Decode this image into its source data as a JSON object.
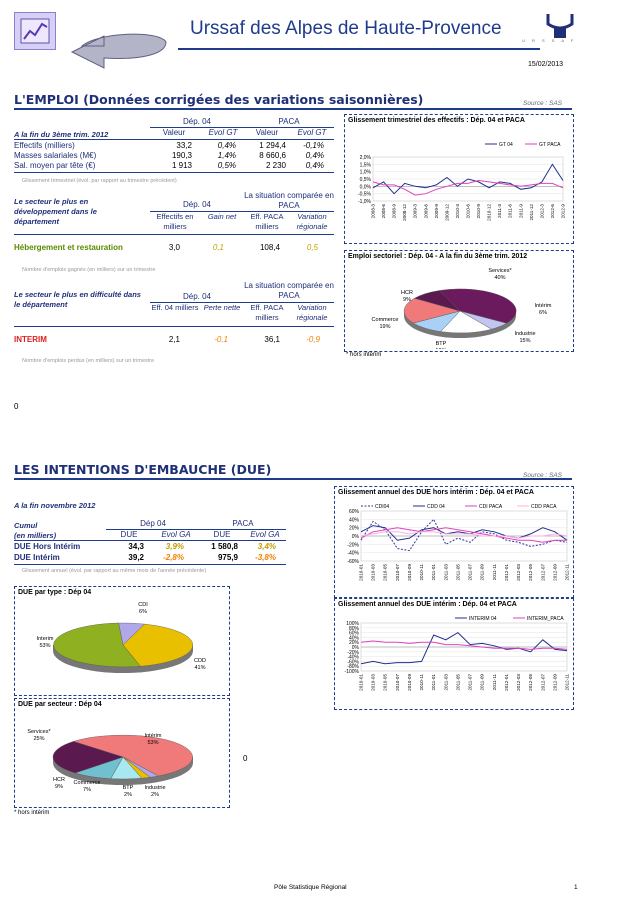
{
  "header": {
    "title": "Urssaf des Alpes de Haute-Provence",
    "date": "15/02/2013",
    "logo_text": "U R S S A F",
    "logo_icon": "urssaf-logo-icon",
    "chart_icon": "chart-clipboard-icon",
    "arrow_icon": "back-arrow-icon"
  },
  "emploi": {
    "title": "L'EMPLOI (Données corrigées des variations saisonnières)",
    "source": "Source : SAS",
    "table": {
      "dep_label": "Dép. 04",
      "paca_label": "PACA",
      "period_label": "A la fin du 3ème trim. 2012",
      "col_valeur": "Valeur",
      "col_evol": "Evol GT",
      "rows": [
        {
          "label": "Effectifs (milliers)",
          "v04": "33,2",
          "e04": "0,4%",
          "vpaca": "1 294,4",
          "epaca": "-0,1%"
        },
        {
          "label": "Masses salariales (M€)",
          "v04": "190,3",
          "e04": "1,4%",
          "vpaca": "8 660,6",
          "epaca": "0,4%"
        },
        {
          "label": "Sal. moyen par tête (€)",
          "v04": "1 913",
          "e04": "0,5%",
          "vpaca": "2 230",
          "epaca": "0,4%"
        }
      ],
      "note": "Glissement trimestriel (évol. par rapport au trimestre précédent)"
    },
    "dev": {
      "label": "Le secteur le plus en développement dans le département",
      "dep_label": "Dép. 04",
      "paca_label": "La situation comparée en PACA",
      "col1": "Effectifs en milliers",
      "col2": "Gain net",
      "col3": "Eff. PACA milliers",
      "col4": "Variation régionale",
      "sector": "Hébergement et restauration",
      "v1": "3,0",
      "v2": "0,1",
      "v3": "108,4",
      "v4": "0,5",
      "note": "Nombre d'emplois gagnés (en milliers) sur un trimestre"
    },
    "diff": {
      "label": "Le secteur le plus en difficulté dans le département",
      "dep_label": "Dép. 04",
      "paca_label": "La situation comparée en PACA",
      "col1": "Eff. 04 milliers",
      "col2": "Perte nette",
      "col3": "Eff. PACA milliers",
      "col4": "Variation régionale",
      "sector": "INTERIM",
      "v1": "2,1",
      "v2": "-0,1",
      "v3": "36,1",
      "v4": "-0,9",
      "note": "Nombre d'emplois perdus (en milliers) sur un trimestre"
    },
    "zero": "0"
  },
  "due": {
    "title": "LES INTENTIONS D'EMBAUCHE (DUE)",
    "source": "Source : SAS",
    "period": "A la fin novembre 2012",
    "cumul": "Cumul",
    "milliers": "(en milliers)",
    "dep_label": "Dép 04",
    "paca_label": "PACA",
    "col_due": "DUE",
    "col_evol": "Evol GA",
    "rows": [
      {
        "label": "DUE Hors Intérim",
        "v04": "34,3",
        "e04": "3,9%",
        "vpaca": "1 580,8",
        "epaca": "3,4%"
      },
      {
        "label": "DUE Intérim",
        "v04": "39,2",
        "e04": "-2,8%",
        "vpaca": "975,9",
        "epaca": "-3,8%"
      }
    ],
    "note": "Glissement annuel (évol. par rapport au même mois de l'année précédente)",
    "zero": "0"
  },
  "footer": {
    "center": "Pôle Statistique Régional",
    "page": "1"
  },
  "chart_data": [
    {
      "type": "line",
      "title": "Glissement trimestriel des effectifs : Dép. 04 et PACA",
      "x": [
        "2008-3",
        "2008-6",
        "2008-9",
        "2008-12",
        "2009-3",
        "2009-6",
        "2009-9",
        "2009-12",
        "2010-3",
        "2010-6",
        "2010-9",
        "2010-12",
        "2011-3",
        "2011-6",
        "2011-9",
        "2011-12",
        "2012-3",
        "2012-6",
        "2012-9"
      ],
      "series": [
        {
          "name": "GT 04",
          "color": "#1f2f8c",
          "values": [
            -0.1,
            0.3,
            -0.5,
            0.2,
            0.0,
            -0.1,
            0.1,
            0.6,
            0.0,
            0.5,
            0.3,
            -0.1,
            0.3,
            0.2,
            -0.2,
            -0.1,
            0.3,
            1.5,
            0.4
          ]
        },
        {
          "name": "GT PACA",
          "color": "#e040c0",
          "values": [
            0.3,
            0.1,
            0.1,
            -0.2,
            -0.6,
            -0.5,
            -0.2,
            0.0,
            0.2,
            0.2,
            0.4,
            0.3,
            0.2,
            0.1,
            0.0,
            0.1,
            0.2,
            0.2,
            -0.1
          ]
        }
      ],
      "yticks": [
        "2,0%",
        "1,5%",
        "1,0%",
        "0,5%",
        "0,0%",
        "-0,5%",
        "-1,0%"
      ],
      "ylim": [
        -1.0,
        2.0
      ]
    },
    {
      "type": "pie",
      "title": "Emploi sectoriel : Dép. 04 - A la fin du 3ème trim. 2012",
      "slices": [
        {
          "label": "Services*",
          "value": 40,
          "text": "40%",
          "color": "#6b1a5e"
        },
        {
          "label": "Intérim",
          "value": 6,
          "text": "6%",
          "color": "#c0c6ef"
        },
        {
          "label": "Industrie",
          "value": 15,
          "text": "15%",
          "color": "#ffffff"
        },
        {
          "label": "BTP",
          "value": 10,
          "text": "10%",
          "color": "#a9d0f5"
        },
        {
          "label": "Commerce",
          "value": 19,
          "text": "19%",
          "color": "#f07a7a"
        },
        {
          "label": "HCR",
          "value": 9,
          "text": "9%",
          "color": "#5a1a50"
        }
      ],
      "note": "* hors intérim"
    },
    {
      "type": "line",
      "title": "Glissement annuel des DUE hors intérim : Dép. 04 et PACA",
      "x": [
        "2010-01",
        "2010-03",
        "2010-05",
        "2010-07",
        "2010-09",
        "2010-11",
        "2011-01",
        "2011-03",
        "2011-05",
        "2011-07",
        "2011-09",
        "2011-11",
        "2012-01",
        "2012-03",
        "2012-05",
        "2012-07",
        "2012-09",
        "2012-11"
      ],
      "series": [
        {
          "name": "CDI04",
          "color": "#333399",
          "dash": true,
          "values": [
            -10,
            35,
            15,
            -30,
            -35,
            10,
            40,
            -20,
            -5,
            -15,
            10,
            5,
            -10,
            -15,
            -25,
            -20,
            -10,
            -15
          ]
        },
        {
          "name": "CDD 04",
          "color": "#1f2f8c",
          "values": [
            10,
            25,
            20,
            -10,
            -5,
            15,
            20,
            5,
            10,
            5,
            15,
            10,
            0,
            -5,
            5,
            20,
            10,
            -10
          ]
        },
        {
          "name": "CDI PACA",
          "color": "#e040c0",
          "values": [
            -5,
            10,
            15,
            20,
            15,
            10,
            15,
            20,
            15,
            10,
            5,
            0,
            -5,
            -10,
            -10,
            -15,
            -10,
            -10
          ]
        },
        {
          "name": "CDD PACA",
          "color": "#ffb0e0",
          "values": [
            0,
            5,
            10,
            10,
            5,
            10,
            10,
            5,
            5,
            5,
            0,
            0,
            0,
            -5,
            0,
            0,
            5,
            0
          ]
        }
      ],
      "yticks": [
        "60%",
        "40%",
        "20%",
        "0%",
        "-20%",
        "-40%",
        "-60%"
      ],
      "ylim": [
        -60,
        60
      ]
    },
    {
      "type": "line",
      "title": "Glissement annuel des DUE intérim : Dép. 04 et PACA",
      "x": [
        "2010-01",
        "2010-03",
        "2010-05",
        "2010-07",
        "2010-09",
        "2010-11",
        "2011-01",
        "2011-03",
        "2011-05",
        "2011-07",
        "2011-09",
        "2011-11",
        "2012-01",
        "2012-03",
        "2012-05",
        "2012-07",
        "2012-09",
        "2012-11"
      ],
      "series": [
        {
          "name": "INTERIM 04",
          "color": "#1f2f8c",
          "values": [
            -70,
            -60,
            -70,
            -65,
            -65,
            -60,
            50,
            30,
            60,
            10,
            15,
            5,
            -10,
            -5,
            -20,
            30,
            -10,
            -15
          ]
        },
        {
          "name": "INTERIM_PACA",
          "color": "#e040c0",
          "values": [
            20,
            25,
            20,
            20,
            15,
            20,
            20,
            10,
            10,
            5,
            0,
            -5,
            -5,
            -5,
            -10,
            -5,
            -5,
            -10
          ]
        }
      ],
      "yticks": [
        "100%",
        "80%",
        "60%",
        "40%",
        "20%",
        "0%",
        "-20%",
        "-40%",
        "-60%",
        "-80%",
        "-100%"
      ],
      "ylim": [
        -100,
        100
      ]
    },
    {
      "type": "pie",
      "title": "DUE par type : Dép 04",
      "slices": [
        {
          "label": "CDI",
          "value": 6,
          "text": "6%",
          "color": "#b0a8e8"
        },
        {
          "label": "CDD",
          "value": 41,
          "text": "41%",
          "color": "#e8c000"
        },
        {
          "label": "Interim",
          "value": 53,
          "text": "53%",
          "color": "#8fb020"
        }
      ]
    },
    {
      "type": "pie",
      "title": "DUE par secteur : Dép 04",
      "slices": [
        {
          "label": "Intérim",
          "value": 53,
          "text": "53%",
          "color": "#f07a7a"
        },
        {
          "label": "Industrie",
          "value": 2,
          "text": "2%",
          "color": "#b0a8e8"
        },
        {
          "label": "BTP",
          "value": 2,
          "text": "2%",
          "color": "#e8c000"
        },
        {
          "label": "Commerce",
          "value": 7,
          "text": "7%",
          "color": "#a9e8f0"
        },
        {
          "label": "HCR",
          "value": 9,
          "text": "9%",
          "color": "#70c0d0"
        },
        {
          "label": "Services*",
          "value": 25,
          "text": "25%",
          "color": "#5a1a50"
        }
      ],
      "note": "* hors intérim"
    }
  ]
}
